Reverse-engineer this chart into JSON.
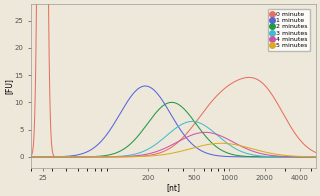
{
  "title": "",
  "xlabel": "[nt]",
  "ylabel": "[FU]",
  "background_color": "#ede8da",
  "plot_bg_color": "#ede8da",
  "ylim": [
    -2,
    28
  ],
  "xlim_low": 20,
  "xlim_high": 5500,
  "xticks": [
    25,
    200,
    500,
    1000,
    2000,
    4000
  ],
  "yticks": [
    0,
    5,
    10,
    15,
    20,
    25
  ],
  "legend": [
    "0 minute",
    "1 minute",
    "2 minutes",
    "3 minutes",
    "4 minutes",
    "5 minutes"
  ],
  "colors": [
    "#e87060",
    "#5566dd",
    "#229944",
    "#44bbcc",
    "#cc55aa",
    "#ddaa22"
  ],
  "figsize": [
    3.2,
    1.96
  ],
  "dpi": 100
}
